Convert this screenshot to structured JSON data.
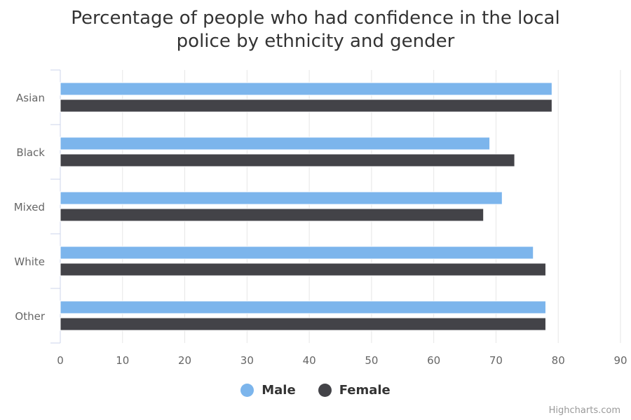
{
  "chart_data": {
    "type": "bar",
    "orientation": "horizontal",
    "title": "Percentage of people who had confidence in the local police by ethnicity and gender",
    "title_lines": [
      "Percentage of people who had confidence in the local",
      "police by ethnicity and gender"
    ],
    "categories": [
      "Asian",
      "Black",
      "Mixed",
      "White",
      "Other"
    ],
    "series": [
      {
        "name": "Male",
        "color": "#7cb5ec",
        "values": [
          79,
          69,
          71,
          76,
          78
        ]
      },
      {
        "name": "Female",
        "color": "#434348",
        "values": [
          79,
          73,
          68,
          78,
          78
        ]
      }
    ],
    "xlim": [
      0,
      90
    ],
    "ticks": [
      "0",
      "10",
      "20",
      "30",
      "40",
      "50",
      "60",
      "70",
      "80",
      "90"
    ],
    "grid": true,
    "legend_position": "bottom-center"
  },
  "credits": "Highcharts.com"
}
